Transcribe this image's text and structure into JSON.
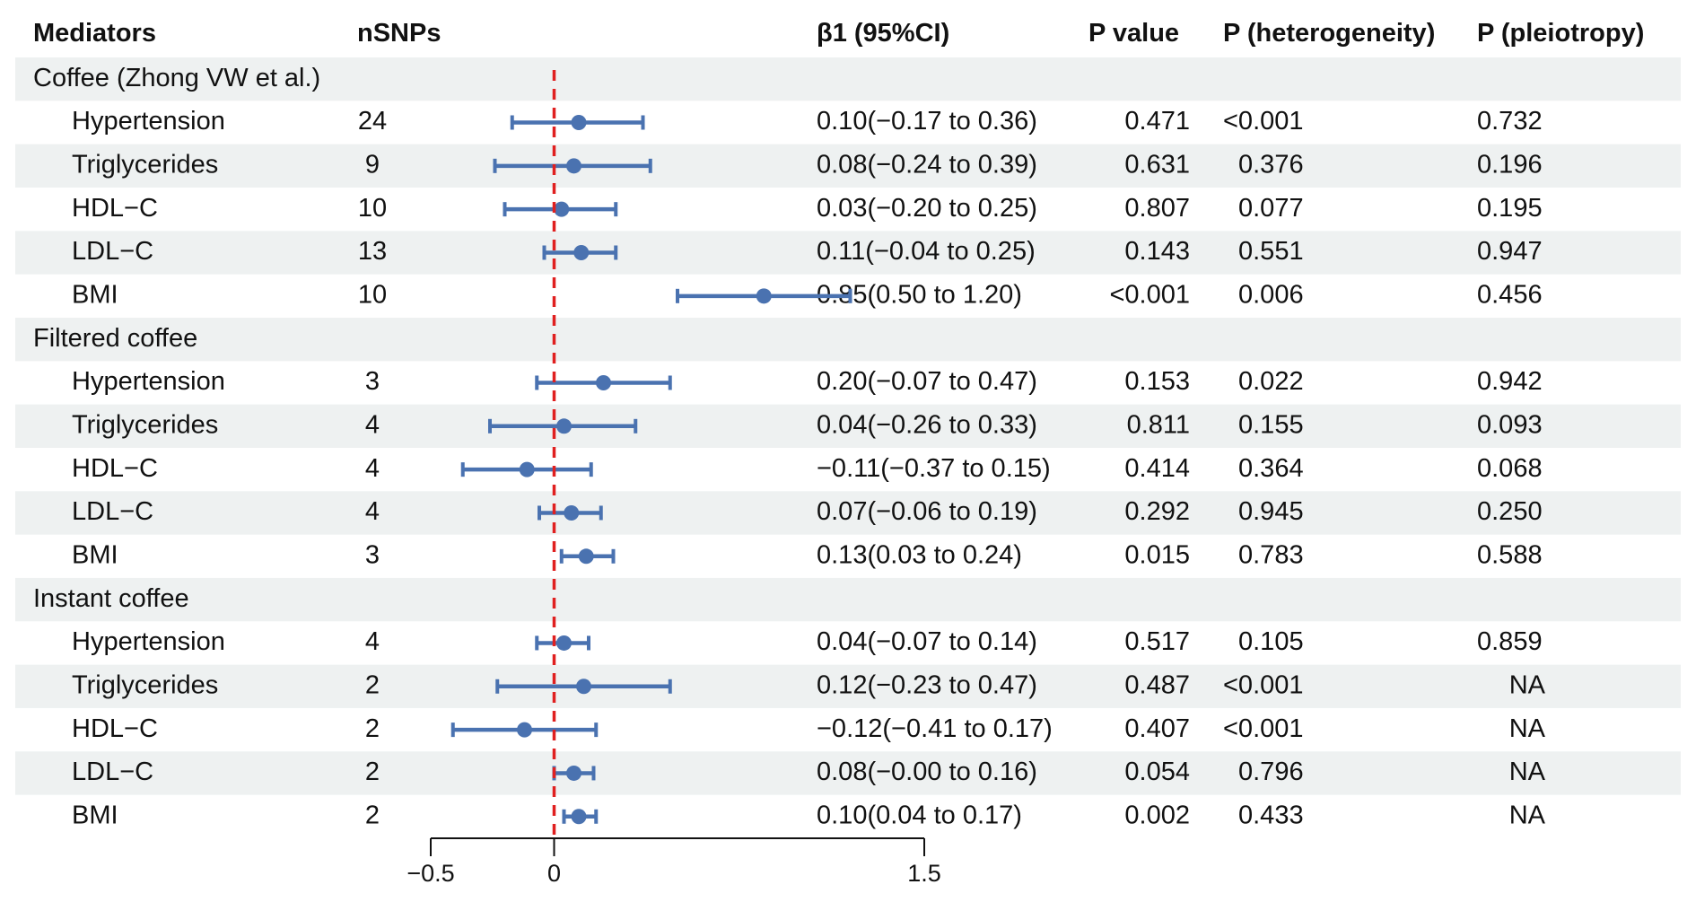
{
  "chart_data": {
    "type": "forest",
    "headers": {
      "mediators": "Mediators",
      "nsnps": "nSNPs",
      "beta": "β1 (95%CI)",
      "pvalue": "P value",
      "heterogeneity": "P (heterogeneity)",
      "pleiotropy": "P (pleiotropy)"
    },
    "xlim": [
      -0.5,
      1.5
    ],
    "ticks": [
      {
        "value": -0.5,
        "label": "−0.5"
      },
      {
        "value": 0,
        "label": "0"
      },
      {
        "value": 1.5,
        "label": "1.5"
      }
    ],
    "reference_line": 0,
    "colors": {
      "point": "#4a72b0",
      "reference": "#e02020",
      "band": "#eef1f1",
      "axis": "#111111"
    },
    "groups": [
      {
        "name": "Coffee (Zhong VW et al.)",
        "rows": [
          {
            "mediator": "Hypertension",
            "nsnps": "24",
            "beta": 0.1,
            "lo": -0.17,
            "hi": 0.36,
            "ci_text": "0.10(−0.17 to 0.36)",
            "p": "0.471",
            "p_het": "<0.001",
            "p_pleio": "0.732"
          },
          {
            "mediator": "Triglycerides",
            "nsnps": "9",
            "beta": 0.08,
            "lo": -0.24,
            "hi": 0.39,
            "ci_text": "0.08(−0.24 to 0.39)",
            "p": "0.631",
            "p_het": "0.376",
            "p_pleio": "0.196"
          },
          {
            "mediator": "HDL−C",
            "nsnps": "10",
            "beta": 0.03,
            "lo": -0.2,
            "hi": 0.25,
            "ci_text": "0.03(−0.20 to 0.25)",
            "p": "0.807",
            "p_het": "0.077",
            "p_pleio": "0.195"
          },
          {
            "mediator": "LDL−C",
            "nsnps": "13",
            "beta": 0.11,
            "lo": -0.04,
            "hi": 0.25,
            "ci_text": "0.11(−0.04 to 0.25)",
            "p": "0.143",
            "p_het": "0.551",
            "p_pleio": "0.947"
          },
          {
            "mediator": "BMI",
            "nsnps": "10",
            "beta": 0.85,
            "lo": 0.5,
            "hi": 1.2,
            "ci_text": "0.85(0.50 to 1.20)",
            "p": "<0.001",
            "p_het": "0.006",
            "p_pleio": "0.456"
          }
        ]
      },
      {
        "name": "Filtered coffee",
        "rows": [
          {
            "mediator": "Hypertension",
            "nsnps": "3",
            "beta": 0.2,
            "lo": -0.07,
            "hi": 0.47,
            "ci_text": "0.20(−0.07 to 0.47)",
            "p": "0.153",
            "p_het": "0.022",
            "p_pleio": "0.942"
          },
          {
            "mediator": "Triglycerides",
            "nsnps": "4",
            "beta": 0.04,
            "lo": -0.26,
            "hi": 0.33,
            "ci_text": "0.04(−0.26 to 0.33)",
            "p": "0.811",
            "p_het": "0.155",
            "p_pleio": "0.093"
          },
          {
            "mediator": "HDL−C",
            "nsnps": "4",
            "beta": -0.11,
            "lo": -0.37,
            "hi": 0.15,
            "ci_text": "−0.11(−0.37 to 0.15)",
            "p": "0.414",
            "p_het": "0.364",
            "p_pleio": "0.068"
          },
          {
            "mediator": "LDL−C",
            "nsnps": "4",
            "beta": 0.07,
            "lo": -0.06,
            "hi": 0.19,
            "ci_text": "0.07(−0.06 to 0.19)",
            "p": "0.292",
            "p_het": "0.945",
            "p_pleio": "0.250"
          },
          {
            "mediator": "BMI",
            "nsnps": "3",
            "beta": 0.13,
            "lo": 0.03,
            "hi": 0.24,
            "ci_text": "0.13(0.03 to 0.24)",
            "p": "0.015",
            "p_het": "0.783",
            "p_pleio": "0.588"
          }
        ]
      },
      {
        "name": "Instant coffee",
        "rows": [
          {
            "mediator": "Hypertension",
            "nsnps": "4",
            "beta": 0.04,
            "lo": -0.07,
            "hi": 0.14,
            "ci_text": "0.04(−0.07 to 0.14)",
            "p": "0.517",
            "p_het": "0.105",
            "p_pleio": "0.859"
          },
          {
            "mediator": "Triglycerides",
            "nsnps": "2",
            "beta": 0.12,
            "lo": -0.23,
            "hi": 0.47,
            "ci_text": "0.12(−0.23 to 0.47)",
            "p": "0.487",
            "p_het": "<0.001",
            "p_pleio": "NA"
          },
          {
            "mediator": "HDL−C",
            "nsnps": "2",
            "beta": -0.12,
            "lo": -0.41,
            "hi": 0.17,
            "ci_text": "−0.12(−0.41 to 0.17)",
            "p": "0.407",
            "p_het": "<0.001",
            "p_pleio": "NA"
          },
          {
            "mediator": "LDL−C",
            "nsnps": "2",
            "beta": 0.08,
            "lo": -0.0,
            "hi": 0.16,
            "ci_text": "0.08(−0.00 to 0.16)",
            "p": "0.054",
            "p_het": "0.796",
            "p_pleio": "NA"
          },
          {
            "mediator": "BMI",
            "nsnps": "2",
            "beta": 0.1,
            "lo": 0.04,
            "hi": 0.17,
            "ci_text": "0.10(0.04 to 0.17)",
            "p": "0.002",
            "p_het": "0.433",
            "p_pleio": "NA"
          }
        ]
      }
    ]
  }
}
